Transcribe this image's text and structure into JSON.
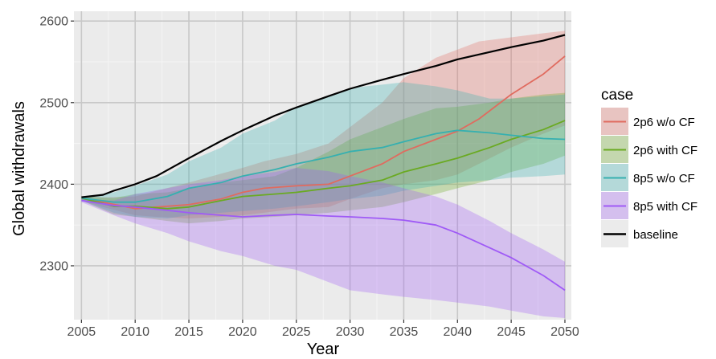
{
  "chart_data": {
    "type": "line",
    "xlabel": "Year",
    "ylabel": "Global withdrawals",
    "xlim": [
      2004.3,
      2050.6
    ],
    "ylim": [
      2234,
      2612
    ],
    "x_ticks": [
      2005,
      2010,
      2015,
      2020,
      2025,
      2030,
      2035,
      2040,
      2045,
      2050
    ],
    "x_tick_labels": [
      "2005",
      "2010",
      "2015",
      "2020",
      "2025",
      "2030",
      "2035",
      "2040",
      "2045",
      "2050"
    ],
    "y_ticks": [
      2300,
      2400,
      2500,
      2600
    ],
    "y_tick_labels": [
      "2300",
      "2400",
      "2500",
      "2600"
    ],
    "grid": true,
    "panel_background": "#ebebeb",
    "legend": {
      "title": "case",
      "position": "right"
    },
    "series": [
      {
        "name": "2p6 w/o CF",
        "color": "#e06b5f",
        "x": [
          2005,
          2007,
          2010,
          2012,
          2015,
          2018,
          2020,
          2022,
          2025,
          2028,
          2030,
          2033,
          2035,
          2038,
          2040,
          2042,
          2045,
          2048,
          2050
        ],
        "values": [
          2383,
          2378,
          2370,
          2372,
          2375,
          2382,
          2390,
          2395,
          2398,
          2400,
          2410,
          2425,
          2440,
          2455,
          2465,
          2480,
          2510,
          2535,
          2557
        ],
        "upper": [
          2385,
          2384,
          2385,
          2392,
          2402,
          2413,
          2420,
          2428,
          2437,
          2450,
          2470,
          2500,
          2530,
          2555,
          2565,
          2575,
          2580,
          2585,
          2588
        ],
        "lower": [
          2380,
          2372,
          2362,
          2360,
          2358,
          2360,
          2362,
          2365,
          2370,
          2372,
          2382,
          2395,
          2400,
          2405,
          2412,
          2425,
          2445,
          2462,
          2472
        ]
      },
      {
        "name": "2p6 with CF",
        "color": "#6aaa22",
        "x": [
          2005,
          2008,
          2010,
          2013,
          2015,
          2018,
          2020,
          2023,
          2025,
          2028,
          2030,
          2033,
          2035,
          2038,
          2040,
          2043,
          2045,
          2048,
          2050
        ],
        "values": [
          2383,
          2373,
          2373,
          2370,
          2372,
          2380,
          2385,
          2388,
          2390,
          2395,
          2398,
          2405,
          2415,
          2425,
          2432,
          2445,
          2455,
          2467,
          2478
        ],
        "upper": [
          2385,
          2383,
          2388,
          2390,
          2395,
          2402,
          2405,
          2410,
          2420,
          2440,
          2455,
          2470,
          2480,
          2493,
          2495,
          2500,
          2505,
          2510,
          2512
        ],
        "lower": [
          2380,
          2363,
          2360,
          2355,
          2352,
          2355,
          2358,
          2360,
          2362,
          2365,
          2368,
          2372,
          2378,
          2388,
          2395,
          2405,
          2415,
          2425,
          2435
        ]
      },
      {
        "name": "8p5 w/o CF",
        "color": "#36b0b0",
        "x": [
          2005,
          2008,
          2010,
          2013,
          2015,
          2018,
          2020,
          2023,
          2025,
          2028,
          2030,
          2033,
          2035,
          2038,
          2040,
          2043,
          2045,
          2048,
          2050
        ],
        "values": [
          2383,
          2378,
          2378,
          2385,
          2395,
          2402,
          2410,
          2418,
          2425,
          2433,
          2440,
          2445,
          2452,
          2462,
          2466,
          2463,
          2460,
          2456,
          2455
        ],
        "upper": [
          2385,
          2390,
          2398,
          2412,
          2428,
          2445,
          2462,
          2478,
          2495,
          2508,
          2518,
          2522,
          2525,
          2520,
          2515,
          2505,
          2505,
          2508,
          2510
        ],
        "lower": [
          2380,
          2365,
          2360,
          2358,
          2362,
          2365,
          2367,
          2370,
          2373,
          2378,
          2382,
          2386,
          2392,
          2398,
          2402,
          2405,
          2408,
          2410,
          2412
        ]
      },
      {
        "name": "8p5 with CF",
        "color": "#9f5af6",
        "x": [
          2005,
          2008,
          2010,
          2013,
          2015,
          2018,
          2020,
          2023,
          2025,
          2028,
          2030,
          2033,
          2035,
          2038,
          2040,
          2043,
          2045,
          2048,
          2050
        ],
        "values": [
          2380,
          2374,
          2372,
          2368,
          2365,
          2362,
          2360,
          2362,
          2363,
          2361,
          2360,
          2358,
          2356,
          2350,
          2340,
          2322,
          2310,
          2288,
          2270
        ],
        "upper": [
          2382,
          2380,
          2388,
          2395,
          2400,
          2405,
          2410,
          2415,
          2420,
          2416,
          2410,
          2402,
          2395,
          2385,
          2375,
          2355,
          2340,
          2320,
          2305
        ],
        "lower": [
          2378,
          2362,
          2352,
          2340,
          2330,
          2318,
          2312,
          2300,
          2295,
          2280,
          2270,
          2265,
          2262,
          2258,
          2255,
          2250,
          2245,
          2238,
          2236
        ]
      },
      {
        "name": "baseline",
        "color": "#000000",
        "x": [
          2005,
          2007,
          2008,
          2010,
          2012,
          2015,
          2018,
          2020,
          2023,
          2025,
          2028,
          2030,
          2033,
          2035,
          2038,
          2040,
          2043,
          2045,
          2048,
          2050
        ],
        "values": [
          2384,
          2387,
          2392,
          2400,
          2410,
          2432,
          2453,
          2466,
          2484,
          2494,
          2508,
          2517,
          2528,
          2535,
          2545,
          2553,
          2562,
          2568,
          2576,
          2583
        ]
      }
    ]
  }
}
